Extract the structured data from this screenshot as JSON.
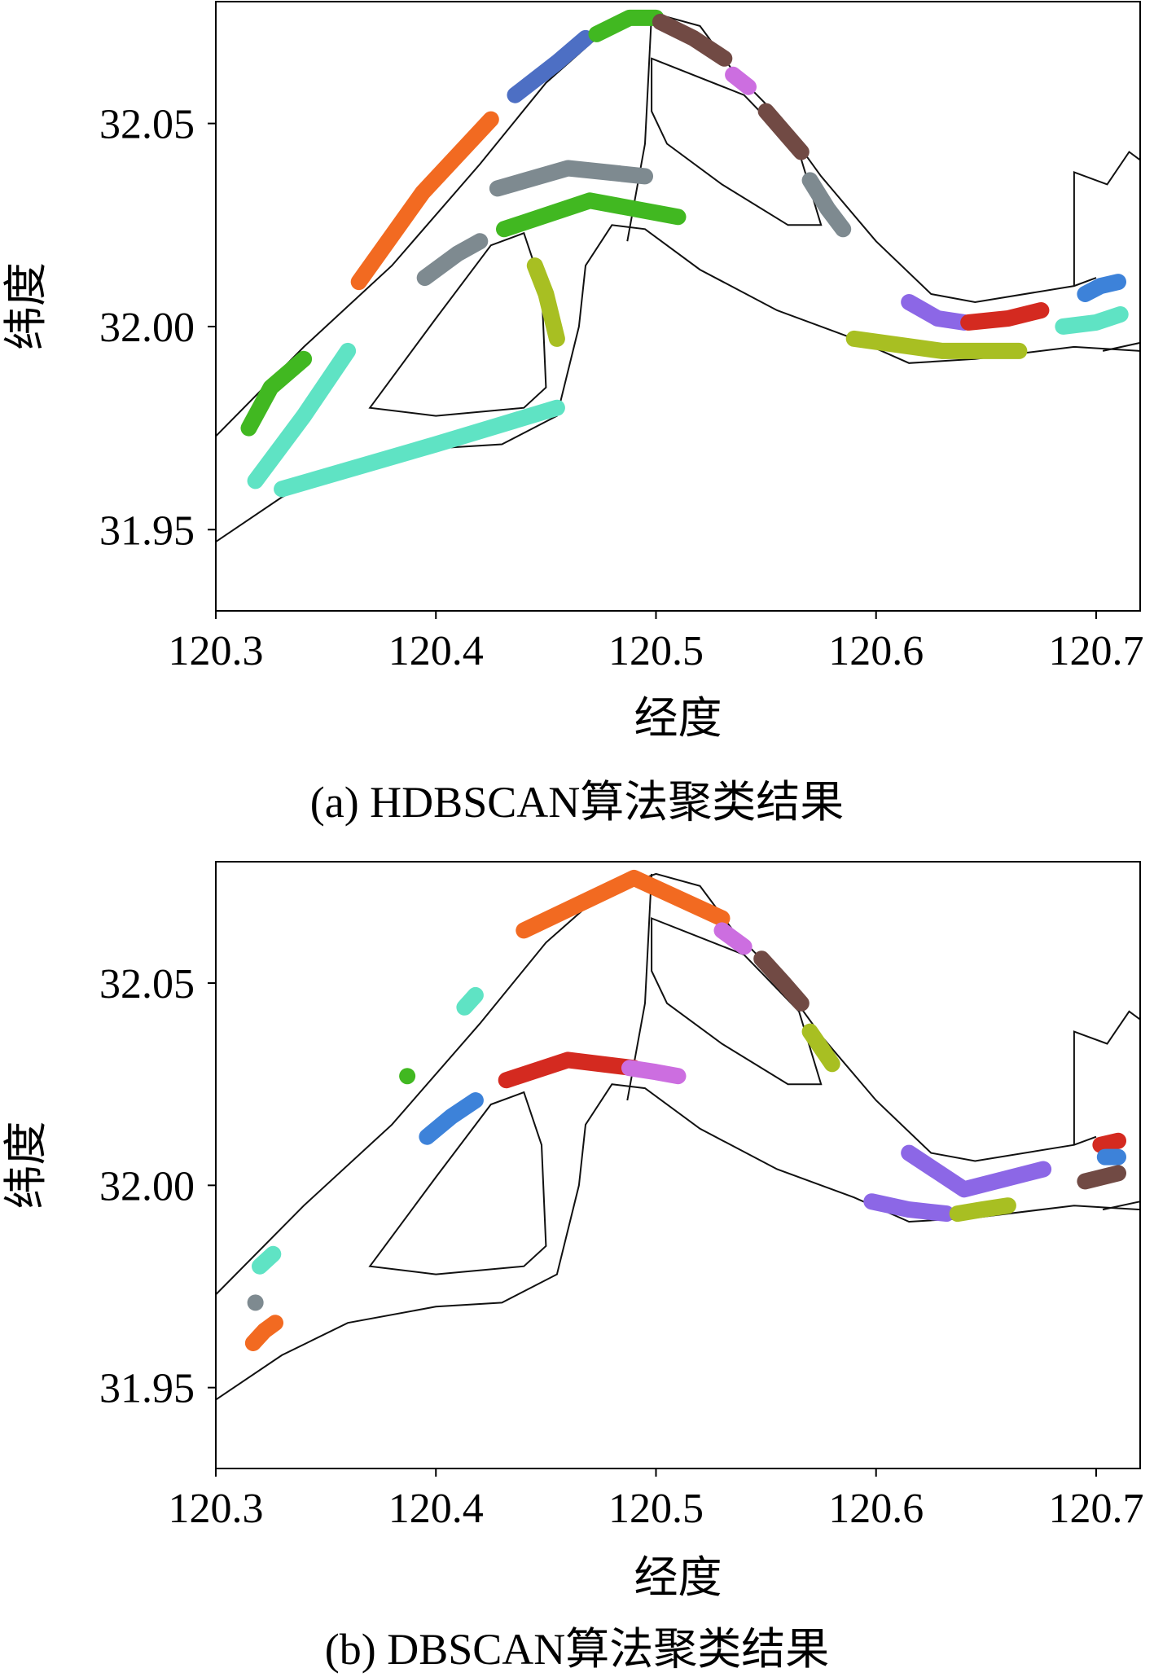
{
  "panels": [
    {
      "caption": "(a) HDBSCAN算法聚类结果",
      "xlabel": "经度",
      "ylabel": "纬度",
      "xlim": [
        120.3,
        120.72
      ],
      "ylim": [
        31.93,
        32.08
      ],
      "x_ticks": [
        "120.3",
        "120.4",
        "120.5",
        "120.6",
        "120.7"
      ],
      "y_ticks": [
        "31.95",
        "32.00",
        "32.05"
      ]
    },
    {
      "caption": "(b) DBSCAN算法聚类结果",
      "xlabel": "经度",
      "ylabel": "纬度",
      "xlim": [
        120.3,
        120.72
      ],
      "ylim": [
        31.93,
        32.08
      ],
      "x_ticks": [
        "120.3",
        "120.4",
        "120.5",
        "120.6",
        "120.7"
      ],
      "y_ticks": [
        "31.95",
        "32.00",
        "32.05"
      ]
    }
  ],
  "chart_data": [
    {
      "type": "scatter",
      "xlabel": "经度",
      "ylabel": "纬度",
      "xlim": [
        120.3,
        120.72
      ],
      "ylim": [
        31.93,
        32.08
      ],
      "grid": false,
      "series": [
        {
          "color": "#4d6fc4",
          "points": [
            [
              120.436,
              32.057
            ],
            [
              120.455,
              32.065
            ],
            [
              120.468,
              32.071
            ]
          ]
        },
        {
          "color": "#41b821",
          "points": [
            [
              120.473,
              32.072
            ],
            [
              120.488,
              32.076
            ],
            [
              120.5,
              32.076
            ]
          ]
        },
        {
          "color": "#714a44",
          "points": [
            [
              120.502,
              32.075
            ],
            [
              120.517,
              32.071
            ],
            [
              120.531,
              32.066
            ]
          ]
        },
        {
          "color": "#cc6ee0",
          "points": [
            [
              120.535,
              32.062
            ],
            [
              120.542,
              32.059
            ]
          ]
        },
        {
          "color": "#714a44",
          "points": [
            [
              120.55,
              32.053
            ],
            [
              120.558,
              32.048
            ],
            [
              120.566,
              32.043
            ]
          ]
        },
        {
          "color": "#7e8a90",
          "points": [
            [
              120.57,
              32.036
            ],
            [
              120.578,
              32.029
            ],
            [
              120.585,
              32.024
            ]
          ]
        },
        {
          "color": "#f26a21",
          "points": [
            [
              120.365,
              32.011
            ],
            [
              120.394,
              32.033
            ],
            [
              120.425,
              32.051
            ]
          ]
        },
        {
          "color": "#7e8a90",
          "points": [
            [
              120.428,
              32.034
            ],
            [
              120.46,
              32.039
            ],
            [
              120.495,
              32.037
            ]
          ]
        },
        {
          "color": "#41b821",
          "points": [
            [
              120.431,
              32.024
            ],
            [
              120.47,
              32.031
            ],
            [
              120.51,
              32.027
            ]
          ]
        },
        {
          "color": "#7e8a90",
          "points": [
            [
              120.395,
              32.012
            ],
            [
              120.41,
              32.018
            ],
            [
              120.42,
              32.021
            ]
          ]
        },
        {
          "color": "#a8bf22",
          "points": [
            [
              120.445,
              32.015
            ],
            [
              120.45,
              32.008
            ],
            [
              120.455,
              31.997
            ]
          ]
        },
        {
          "color": "#41b821",
          "points": [
            [
              120.315,
              31.975
            ],
            [
              120.325,
              31.985
            ],
            [
              120.34,
              31.992
            ]
          ]
        },
        {
          "color": "#5fe3c4",
          "points": [
            [
              120.318,
              31.962
            ],
            [
              120.34,
              31.978
            ],
            [
              120.36,
              31.994
            ]
          ]
        },
        {
          "color": "#5fe3c4",
          "points": [
            [
              120.33,
              31.96
            ],
            [
              120.4,
              31.971
            ],
            [
              120.455,
              31.98
            ]
          ]
        },
        {
          "color": "#8c67e6",
          "points": [
            [
              120.615,
              32.006
            ],
            [
              120.628,
              32.002
            ],
            [
              120.64,
              32.001
            ]
          ]
        },
        {
          "color": "#d42a20",
          "points": [
            [
              120.642,
              32.001
            ],
            [
              120.66,
              32.002
            ],
            [
              120.675,
              32.004
            ]
          ]
        },
        {
          "color": "#a8bf22",
          "points": [
            [
              120.59,
              31.997
            ],
            [
              120.63,
              31.994
            ],
            [
              120.665,
              31.994
            ]
          ]
        },
        {
          "color": "#3d82d9",
          "points": [
            [
              120.695,
              32.008
            ],
            [
              120.702,
              32.01
            ],
            [
              120.71,
              32.011
            ]
          ]
        },
        {
          "color": "#5fe3c4",
          "points": [
            [
              120.685,
              32.0
            ],
            [
              120.7,
              32.001
            ],
            [
              120.711,
              32.003
            ]
          ]
        }
      ]
    },
    {
      "type": "scatter",
      "xlabel": "经度",
      "ylabel": "纬度",
      "xlim": [
        120.3,
        120.72
      ],
      "ylim": [
        31.93,
        32.08
      ],
      "grid": false,
      "series": [
        {
          "color": "#f26a21",
          "points": [
            [
              120.44,
              32.063
            ],
            [
              120.49,
              32.076
            ],
            [
              120.53,
              32.066
            ]
          ]
        },
        {
          "color": "#cc6ee0",
          "points": [
            [
              120.53,
              32.063
            ],
            [
              120.54,
              32.059
            ]
          ]
        },
        {
          "color": "#714a44",
          "points": [
            [
              120.548,
              32.056
            ],
            [
              120.558,
              32.05
            ],
            [
              120.566,
              32.045
            ]
          ]
        },
        {
          "color": "#a8bf22",
          "points": [
            [
              120.57,
              32.038
            ],
            [
              120.575,
              32.034
            ],
            [
              120.58,
              32.03
            ]
          ]
        },
        {
          "color": "#5fe3c4",
          "points": [
            [
              120.413,
              32.044
            ],
            [
              120.418,
              32.047
            ]
          ]
        },
        {
          "color": "#41b821",
          "points": [
            [
              120.387,
              32.027
            ]
          ]
        },
        {
          "color": "#d42a20",
          "points": [
            [
              120.432,
              32.026
            ],
            [
              120.46,
              32.031
            ],
            [
              120.49,
              32.029
            ]
          ]
        },
        {
          "color": "#cc6ee0",
          "points": [
            [
              120.488,
              32.029
            ],
            [
              120.5,
              32.028
            ],
            [
              120.51,
              32.027
            ]
          ]
        },
        {
          "color": "#3d82d9",
          "points": [
            [
              120.396,
              32.012
            ],
            [
              120.407,
              32.017
            ],
            [
              120.418,
              32.021
            ]
          ]
        },
        {
          "color": "#5fe3c4",
          "points": [
            [
              120.32,
              31.98
            ],
            [
              120.326,
              31.983
            ]
          ]
        },
        {
          "color": "#7e8a90",
          "points": [
            [
              120.318,
              31.971
            ]
          ]
        },
        {
          "color": "#f26a21",
          "points": [
            [
              120.317,
              31.961
            ],
            [
              120.322,
              31.964
            ],
            [
              120.327,
              31.966
            ]
          ]
        },
        {
          "color": "#8c67e6",
          "points": [
            [
              120.615,
              32.008
            ],
            [
              120.64,
              31.999
            ],
            [
              120.676,
              32.004
            ]
          ]
        },
        {
          "color": "#8c67e6",
          "points": [
            [
              120.598,
              31.996
            ],
            [
              120.615,
              31.994
            ],
            [
              120.632,
              31.993
            ]
          ]
        },
        {
          "color": "#a8bf22",
          "points": [
            [
              120.637,
              31.993
            ],
            [
              120.648,
              31.994
            ],
            [
              120.66,
              31.995
            ]
          ]
        },
        {
          "color": "#d42a20",
          "points": [
            [
              120.702,
              32.01
            ],
            [
              120.71,
              32.011
            ]
          ]
        },
        {
          "color": "#3d82d9",
          "points": [
            [
              120.704,
              32.007
            ],
            [
              120.71,
              32.007
            ]
          ]
        },
        {
          "color": "#714a44",
          "points": [
            [
              120.695,
              32.001
            ],
            [
              120.71,
              32.003
            ]
          ]
        }
      ]
    }
  ]
}
